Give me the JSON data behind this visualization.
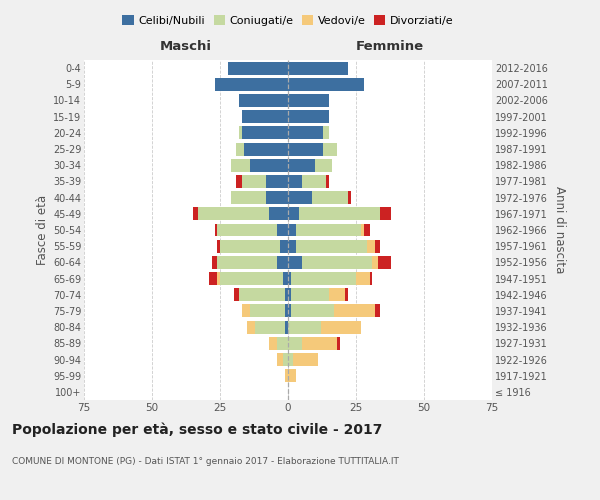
{
  "age_groups": [
    "100+",
    "95-99",
    "90-94",
    "85-89",
    "80-84",
    "75-79",
    "70-74",
    "65-69",
    "60-64",
    "55-59",
    "50-54",
    "45-49",
    "40-44",
    "35-39",
    "30-34",
    "25-29",
    "20-24",
    "15-19",
    "10-14",
    "5-9",
    "0-4"
  ],
  "birth_years": [
    "≤ 1916",
    "1917-1921",
    "1922-1926",
    "1927-1931",
    "1932-1936",
    "1937-1941",
    "1942-1946",
    "1947-1951",
    "1952-1956",
    "1957-1961",
    "1962-1966",
    "1967-1971",
    "1972-1976",
    "1977-1981",
    "1982-1986",
    "1987-1991",
    "1992-1996",
    "1997-2001",
    "2002-2006",
    "2007-2011",
    "2012-2016"
  ],
  "male": {
    "celibi": [
      0,
      0,
      0,
      0,
      1,
      1,
      1,
      2,
      4,
      3,
      4,
      7,
      8,
      8,
      14,
      16,
      17,
      17,
      18,
      27,
      22
    ],
    "coniugati": [
      0,
      0,
      2,
      4,
      11,
      13,
      17,
      23,
      22,
      22,
      22,
      26,
      13,
      9,
      7,
      3,
      1,
      0,
      0,
      0,
      0
    ],
    "vedovi": [
      0,
      1,
      2,
      3,
      3,
      3,
      0,
      1,
      0,
      0,
      0,
      0,
      0,
      0,
      0,
      0,
      0,
      0,
      0,
      0,
      0
    ],
    "divorziati": [
      0,
      0,
      0,
      0,
      0,
      0,
      2,
      3,
      2,
      1,
      1,
      2,
      0,
      2,
      0,
      0,
      0,
      0,
      0,
      0,
      0
    ]
  },
  "female": {
    "nubili": [
      0,
      0,
      0,
      0,
      0,
      1,
      1,
      1,
      5,
      3,
      3,
      4,
      9,
      5,
      10,
      13,
      13,
      15,
      15,
      28,
      22
    ],
    "coniugate": [
      0,
      0,
      2,
      5,
      12,
      16,
      14,
      24,
      26,
      26,
      24,
      30,
      13,
      9,
      6,
      5,
      2,
      0,
      0,
      0,
      0
    ],
    "vedove": [
      0,
      3,
      9,
      13,
      15,
      15,
      6,
      5,
      2,
      3,
      1,
      0,
      0,
      0,
      0,
      0,
      0,
      0,
      0,
      0,
      0
    ],
    "divorziate": [
      0,
      0,
      0,
      1,
      0,
      2,
      1,
      1,
      5,
      2,
      2,
      4,
      1,
      1,
      0,
      0,
      0,
      0,
      0,
      0,
      0
    ]
  },
  "colors": {
    "celibi_nubili": "#3d6fa0",
    "coniugati_e": "#c5d9a0",
    "vedovi_e": "#f5c97a",
    "divorziati_e": "#cc2222"
  },
  "xlim": 75,
  "title": "Popolazione per età, sesso e stato civile - 2017",
  "subtitle": "COMUNE DI MONTONE (PG) - Dati ISTAT 1° gennaio 2017 - Elaborazione TUTTITALIA.IT",
  "xlabel_left": "Maschi",
  "xlabel_right": "Femmine",
  "ylabel_left": "Fasce di età",
  "ylabel_right": "Anni di nascita",
  "bg_color": "#f0f0f0",
  "plot_bg": "#ffffff"
}
